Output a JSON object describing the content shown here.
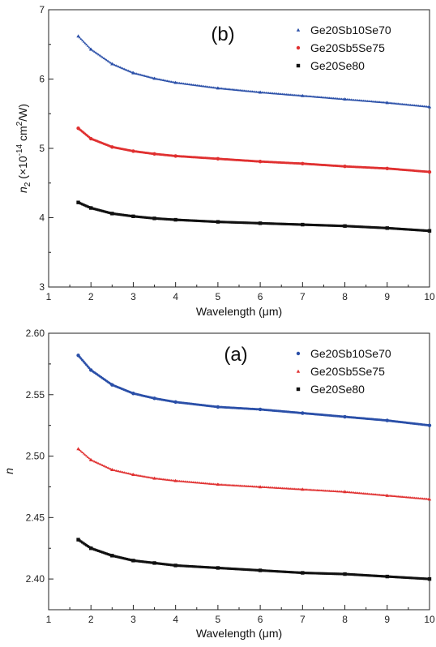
{
  "chart_data": [
    {
      "type": "scatter",
      "panel_label": "(b)",
      "xlabel": "Wavelength (μm)",
      "ylabel_prefix": "n",
      "ylabel_sub": "2",
      "ylabel_mid": " (×10",
      "ylabel_exp1": "-14",
      "ylabel_unit": " cm",
      "ylabel_exp2": "2",
      "ylabel_suffix": "/W)",
      "xlim": [
        1,
        10
      ],
      "ylim": [
        3,
        7
      ],
      "xticks": [
        1,
        2,
        3,
        4,
        5,
        6,
        7,
        8,
        9,
        10
      ],
      "yticks": [
        3,
        4,
        5,
        6,
        7
      ],
      "ytick_labels": [
        "3",
        "4",
        "5",
        "6",
        "7"
      ],
      "grid": false,
      "legend_position": "top-right",
      "series": [
        {
          "name": "Ge20Sb10Se70",
          "color": "#2a4fa8",
          "marker": "triangle",
          "x": [
            1.7,
            2.0,
            2.5,
            3.0,
            3.5,
            4.0,
            5.0,
            6.0,
            7.0,
            8.0,
            9.0,
            10.0
          ],
          "y": [
            6.62,
            6.43,
            6.22,
            6.09,
            6.01,
            5.95,
            5.87,
            5.81,
            5.76,
            5.71,
            5.66,
            5.6
          ]
        },
        {
          "name": "Ge20Sb5Se75",
          "color": "#e03030",
          "marker": "circle",
          "x": [
            1.7,
            2.0,
            2.5,
            3.0,
            3.5,
            4.0,
            5.0,
            6.0,
            7.0,
            8.0,
            9.0,
            10.0
          ],
          "y": [
            5.29,
            5.14,
            5.02,
            4.96,
            4.92,
            4.89,
            4.85,
            4.81,
            4.78,
            4.74,
            4.71,
            4.66
          ]
        },
        {
          "name": "Ge20Se80",
          "color": "#111111",
          "marker": "square",
          "x": [
            1.7,
            2.0,
            2.5,
            3.0,
            3.5,
            4.0,
            5.0,
            6.0,
            7.0,
            8.0,
            9.0,
            10.0
          ],
          "y": [
            4.22,
            4.14,
            4.06,
            4.02,
            3.99,
            3.97,
            3.94,
            3.92,
            3.9,
            3.88,
            3.85,
            3.81
          ]
        }
      ]
    },
    {
      "type": "scatter",
      "panel_label": "(a)",
      "xlabel": "Wavelength (μm)",
      "ylabel_prefix": "n",
      "xlim": [
        1,
        10
      ],
      "ylim": [
        2.375,
        2.6
      ],
      "xticks": [
        1,
        2,
        3,
        4,
        5,
        6,
        7,
        8,
        9,
        10
      ],
      "yticks": [
        2.4,
        2.45,
        2.5,
        2.55,
        2.6
      ],
      "ytick_labels": [
        "2.40",
        "2.45",
        "2.50",
        "2.55",
        "2.60"
      ],
      "grid": false,
      "legend_position": "top-right",
      "series": [
        {
          "name": "Ge20Sb10Se70",
          "color": "#2a4fa8",
          "marker": "circle",
          "x": [
            1.7,
            2.0,
            2.5,
            3.0,
            3.5,
            4.0,
            5.0,
            6.0,
            7.0,
            8.0,
            9.0,
            10.0
          ],
          "y": [
            2.582,
            2.57,
            2.558,
            2.551,
            2.547,
            2.544,
            2.54,
            2.538,
            2.535,
            2.532,
            2.529,
            2.525
          ]
        },
        {
          "name": "Ge20Sb5Se75",
          "color": "#e03030",
          "marker": "triangle",
          "x": [
            1.7,
            2.0,
            2.5,
            3.0,
            3.5,
            4.0,
            5.0,
            6.0,
            7.0,
            8.0,
            9.0,
            10.0
          ],
          "y": [
            2.506,
            2.497,
            2.489,
            2.485,
            2.482,
            2.48,
            2.477,
            2.475,
            2.473,
            2.471,
            2.468,
            2.465
          ]
        },
        {
          "name": "Ge20Se80",
          "color": "#111111",
          "marker": "square",
          "x": [
            1.7,
            2.0,
            2.5,
            3.0,
            3.5,
            4.0,
            5.0,
            6.0,
            7.0,
            8.0,
            9.0,
            10.0
          ],
          "y": [
            2.432,
            2.425,
            2.419,
            2.415,
            2.413,
            2.411,
            2.409,
            2.407,
            2.405,
            2.404,
            2.402,
            2.4
          ]
        }
      ]
    }
  ]
}
